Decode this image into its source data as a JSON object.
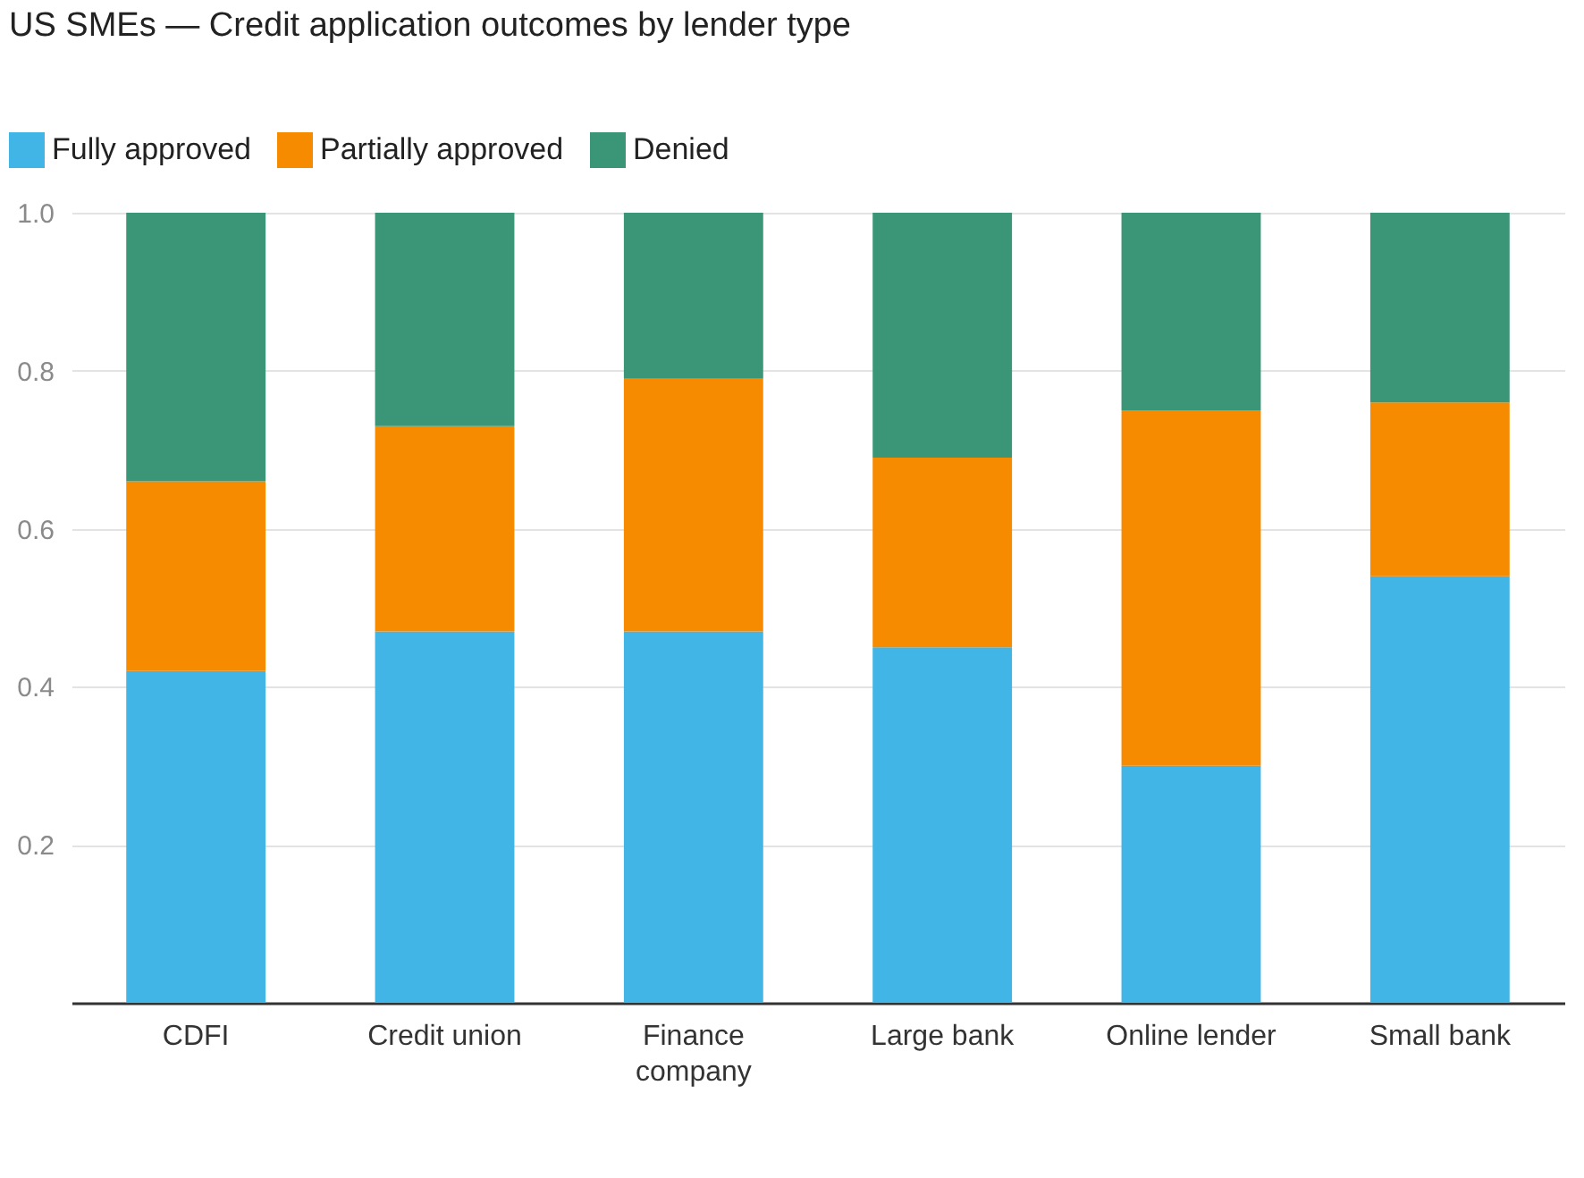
{
  "chart_data": {
    "type": "bar",
    "title": "US SMEs — Credit application outcomes by lender type",
    "categories": [
      "CDFI",
      "Credit union",
      "Finance company",
      "Large bank",
      "Online lender",
      "Small bank"
    ],
    "stacked": true,
    "series": [
      {
        "name": "Fully approved",
        "color": "#41b6e6",
        "values": [
          0.42,
          0.47,
          0.47,
          0.45,
          0.3,
          0.54
        ]
      },
      {
        "name": "Partially approved",
        "color": "#f78b00",
        "values": [
          0.24,
          0.26,
          0.32,
          0.24,
          0.45,
          0.22
        ]
      },
      {
        "name": "Denied",
        "color": "#3a9677",
        "values": [
          0.34,
          0.27,
          0.21,
          0.31,
          0.25,
          0.24
        ]
      }
    ],
    "ylim": [
      0,
      1
    ],
    "yticks": [
      {
        "value": 0,
        "label": null
      },
      {
        "value": 0.2,
        "label": "0.2"
      },
      {
        "value": 0.4,
        "label": "0.4"
      },
      {
        "value": 0.6,
        "label": "0.6"
      },
      {
        "value": 0.8,
        "label": "0.8"
      },
      {
        "value": 1,
        "label": "1.0"
      }
    ],
    "grid": "y",
    "legend": "top left"
  }
}
